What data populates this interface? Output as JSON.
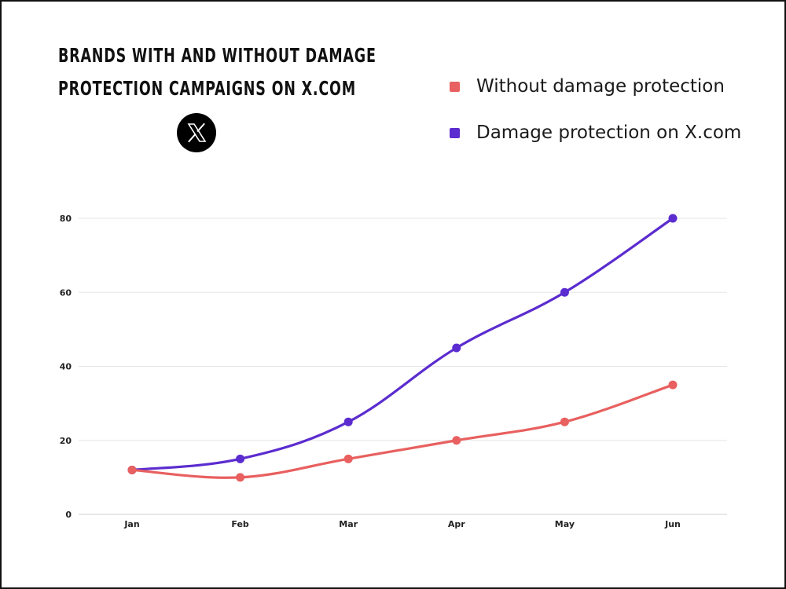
{
  "title_lines": [
    "Brands with and without damage",
    "protection campaigns on X.com"
  ],
  "logo": {
    "icon": "x-logo-icon"
  },
  "legend": [
    {
      "label": "Without damage protection",
      "color": "#e8605f"
    },
    {
      "label": "Damage protection on X.com",
      "color": "#5b2ccf"
    }
  ],
  "chart_data": {
    "type": "line",
    "title": "Brands with and without damage protection campaigns on X.com",
    "xlabel": "",
    "ylabel": "",
    "categories": [
      "Jan",
      "Feb",
      "Mar",
      "Apr",
      "May",
      "Jun"
    ],
    "ylim": [
      0,
      80
    ],
    "yticks": [
      0,
      20,
      40,
      60,
      80
    ],
    "grid": true,
    "legend_position": "top-right",
    "series": [
      {
        "name": "Without damage protection",
        "color": "#e8605f",
        "values": [
          12,
          10,
          15,
          20,
          25,
          35
        ]
      },
      {
        "name": "Damage protection on X.com",
        "color": "#5b2ccf",
        "values": [
          12,
          15,
          25,
          45,
          60,
          80
        ]
      }
    ]
  }
}
